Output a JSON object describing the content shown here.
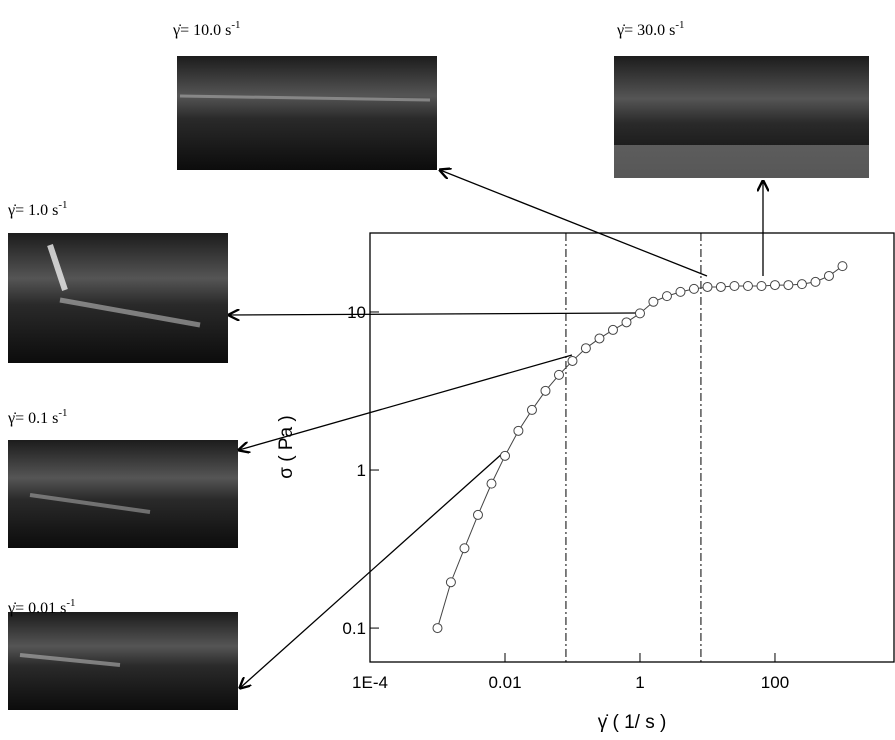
{
  "chart_data": {
    "type": "scatter",
    "log_x": true,
    "log_y": true,
    "x_label": "γ̇ ( 1/ s )",
    "y_label": "σ ( Pa )",
    "x": [
      0.001,
      0.00158,
      0.00251,
      0.00398,
      0.00631,
      0.01,
      0.0158,
      0.0251,
      0.0398,
      0.0631,
      0.1,
      0.158,
      0.251,
      0.398,
      0.631,
      1,
      1.58,
      2.51,
      3.98,
      6.31,
      10,
      15.8,
      25.1,
      39.8,
      63.1,
      100,
      158,
      251,
      398,
      631,
      1000
    ],
    "values": [
      0.1,
      0.195,
      0.32,
      0.52,
      0.82,
      1.23,
      1.77,
      2.4,
      3.17,
      4.0,
      4.9,
      5.9,
      6.8,
      7.7,
      8.6,
      9.8,
      11.6,
      12.6,
      13.4,
      14.0,
      14.4,
      14.4,
      14.6,
      14.6,
      14.6,
      14.8,
      14.8,
      15.0,
      15.5,
      16.9,
      19.5
    ],
    "color": "#444444",
    "xlim": [
      0.0001,
      5800
    ],
    "ylim": [
      0.061,
      31.6
    ],
    "xticks": [
      {
        "value": 0.0001,
        "label": "1E-4"
      },
      0.01,
      1,
      100
    ],
    "yticks": [
      0.1,
      1,
      10
    ],
    "vlines": [
      0.08,
      8
    ],
    "annotations": [
      {
        "text": "γ̇= 10.0  s",
        "sup": "-1"
      },
      {
        "text": "γ̇= 30.0  s",
        "sup": "-1"
      },
      {
        "text": "γ̇= 1.0  s",
        "sup": "-1"
      },
      {
        "text": "γ̇= 0.1  s",
        "sup": "-1"
      },
      {
        "text": "γ̇= 0.01  s",
        "sup": "-1"
      }
    ]
  }
}
